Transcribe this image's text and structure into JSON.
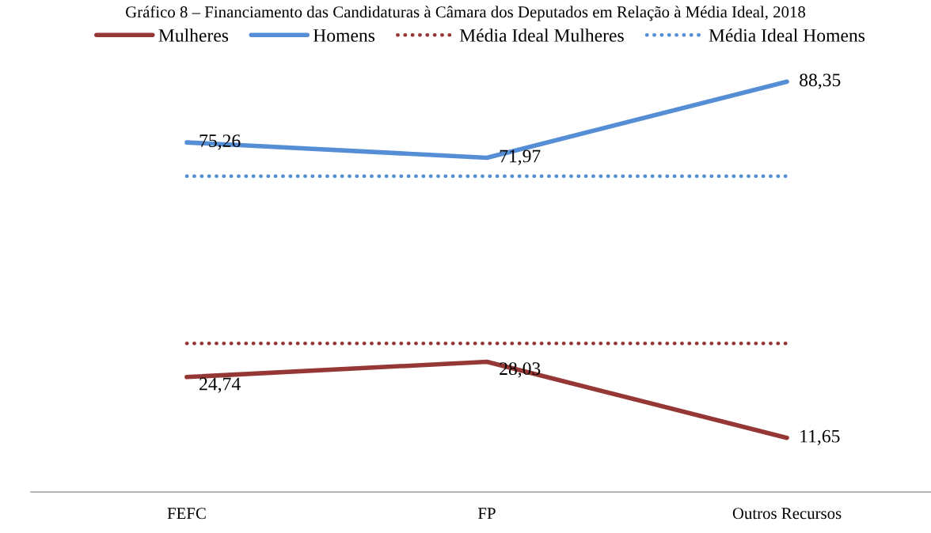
{
  "chart_data": {
    "type": "line",
    "title": "Gráfico 8 – Financiamento das Candidaturas à Câmara dos Deputados em Relação à Média Ideal, 2018",
    "categories": [
      "FEFC",
      "FP",
      "Outros Recursos"
    ],
    "series": [
      {
        "name": "Mulheres",
        "color": "#953735",
        "values": [
          24.74,
          28.03,
          11.65
        ],
        "value_labels": [
          "24,74",
          "28,03",
          "11,65"
        ],
        "line_style": "solid"
      },
      {
        "name": "Homens",
        "color": "#558ed5",
        "values": [
          75.26,
          71.97,
          88.35
        ],
        "value_labels": [
          "75,26",
          "71,97",
          "88,35"
        ],
        "line_style": "solid"
      },
      {
        "name": "Média Ideal Mulheres",
        "color": "#953735",
        "values": [
          32,
          32,
          32
        ],
        "line_style": "dotted"
      },
      {
        "name": "Média Ideal Homens",
        "color": "#558ed5",
        "values": [
          68,
          68,
          68
        ],
        "line_style": "dotted"
      }
    ],
    "tick_labels": "x",
    "legend": "top",
    "grid": false,
    "marker": "none"
  }
}
